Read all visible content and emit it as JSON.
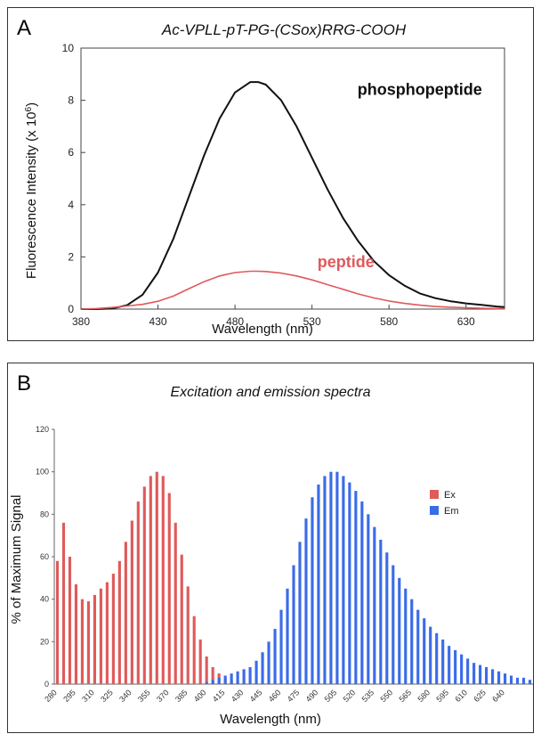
{
  "panel_a": {
    "letter": "A",
    "title": "Ac-VPLL-pT-PG-(CSox)RRG-COOH",
    "ylabel": "Fluorescence Intensity (x 10",
    "ylabel_sup": "6",
    "ylabel_close": ")",
    "xlabel": "Wavelength (nm)"
  },
  "panel_b": {
    "letter": "B",
    "title": "Excitation and emission spectra",
    "ylabel": "% of Maximum Signal",
    "xlabel": "Wavelength (nm)"
  },
  "chart_data": [
    {
      "type": "line",
      "title": "Ac-VPLL-pT-PG-(CSox)RRG-COOH",
      "xlabel": "Wavelength (nm)",
      "ylabel": "Fluorescence Intensity (x 10^6)",
      "xlim": [
        380,
        655
      ],
      "ylim": [
        0,
        10
      ],
      "xticks": [
        380,
        430,
        480,
        530,
        580,
        630
      ],
      "yticks": [
        0,
        2,
        4,
        6,
        8,
        10
      ],
      "grid": false,
      "series": [
        {
          "name": "phosphopeptide",
          "color": "#111111",
          "x": [
            380,
            390,
            400,
            410,
            420,
            430,
            440,
            450,
            460,
            470,
            480,
            490,
            495,
            500,
            510,
            520,
            530,
            540,
            550,
            560,
            570,
            580,
            590,
            600,
            610,
            620,
            630,
            640,
            650,
            655
          ],
          "y": [
            0,
            0,
            0.02,
            0.15,
            0.55,
            1.4,
            2.7,
            4.3,
            5.9,
            7.3,
            8.3,
            8.7,
            8.7,
            8.6,
            8.0,
            7.0,
            5.8,
            4.6,
            3.5,
            2.6,
            1.85,
            1.3,
            0.9,
            0.6,
            0.42,
            0.3,
            0.22,
            0.16,
            0.1,
            0.08
          ]
        },
        {
          "name": "peptide",
          "color": "#e0595c",
          "x": [
            380,
            390,
            400,
            410,
            420,
            430,
            440,
            450,
            460,
            470,
            480,
            490,
            495,
            500,
            510,
            520,
            530,
            540,
            550,
            560,
            570,
            580,
            590,
            600,
            610,
            620,
            630,
            640,
            650,
            655
          ],
          "y": [
            0,
            0.02,
            0.06,
            0.12,
            0.18,
            0.3,
            0.5,
            0.78,
            1.05,
            1.27,
            1.4,
            1.45,
            1.45,
            1.44,
            1.38,
            1.27,
            1.12,
            0.94,
            0.76,
            0.58,
            0.43,
            0.31,
            0.22,
            0.15,
            0.1,
            0.07,
            0.05,
            0.03,
            0.02,
            0.02
          ]
        }
      ]
    },
    {
      "type": "bar",
      "title": "Excitation and emission spectra",
      "xlabel": "Wavelength (nm)",
      "ylabel": "% of Maximum Signal",
      "ylim": [
        0,
        120
      ],
      "yticks": [
        0,
        20,
        40,
        60,
        80,
        100,
        120
      ],
      "x_start": 280,
      "x_step": 5,
      "x_tick_labels": [
        "280",
        "295",
        "310",
        "325",
        "340",
        "355",
        "370",
        "385",
        "400",
        "415",
        "430",
        "445",
        "460",
        "475",
        "490",
        "505",
        "520",
        "535",
        "550",
        "565",
        "580",
        "595",
        "610",
        "625",
        "640"
      ],
      "legend": "right",
      "grid": false,
      "series": [
        {
          "name": "Ex",
          "color": "#e05a5a",
          "values": [
            58,
            76,
            60,
            47,
            40,
            39,
            42,
            45,
            48,
            52,
            58,
            67,
            77,
            86,
            93,
            98,
            100,
            98,
            90,
            76,
            61,
            46,
            32,
            21,
            13,
            8,
            5,
            3,
            2,
            1,
            1,
            0,
            0
          ]
        },
        {
          "name": "Em",
          "color": "#3a6be8",
          "start_index": 24,
          "values": [
            1,
            2,
            3,
            4,
            5,
            6,
            7,
            8,
            11,
            15,
            20,
            26,
            35,
            45,
            56,
            67,
            78,
            88,
            94,
            98,
            100,
            100,
            98,
            95,
            91,
            86,
            80,
            74,
            68,
            62,
            56,
            50,
            45,
            40,
            35,
            31,
            27,
            24,
            21,
            18,
            16,
            14,
            12,
            10,
            9,
            8,
            7,
            6,
            5,
            4,
            3,
            3,
            2
          ]
        }
      ]
    }
  ]
}
